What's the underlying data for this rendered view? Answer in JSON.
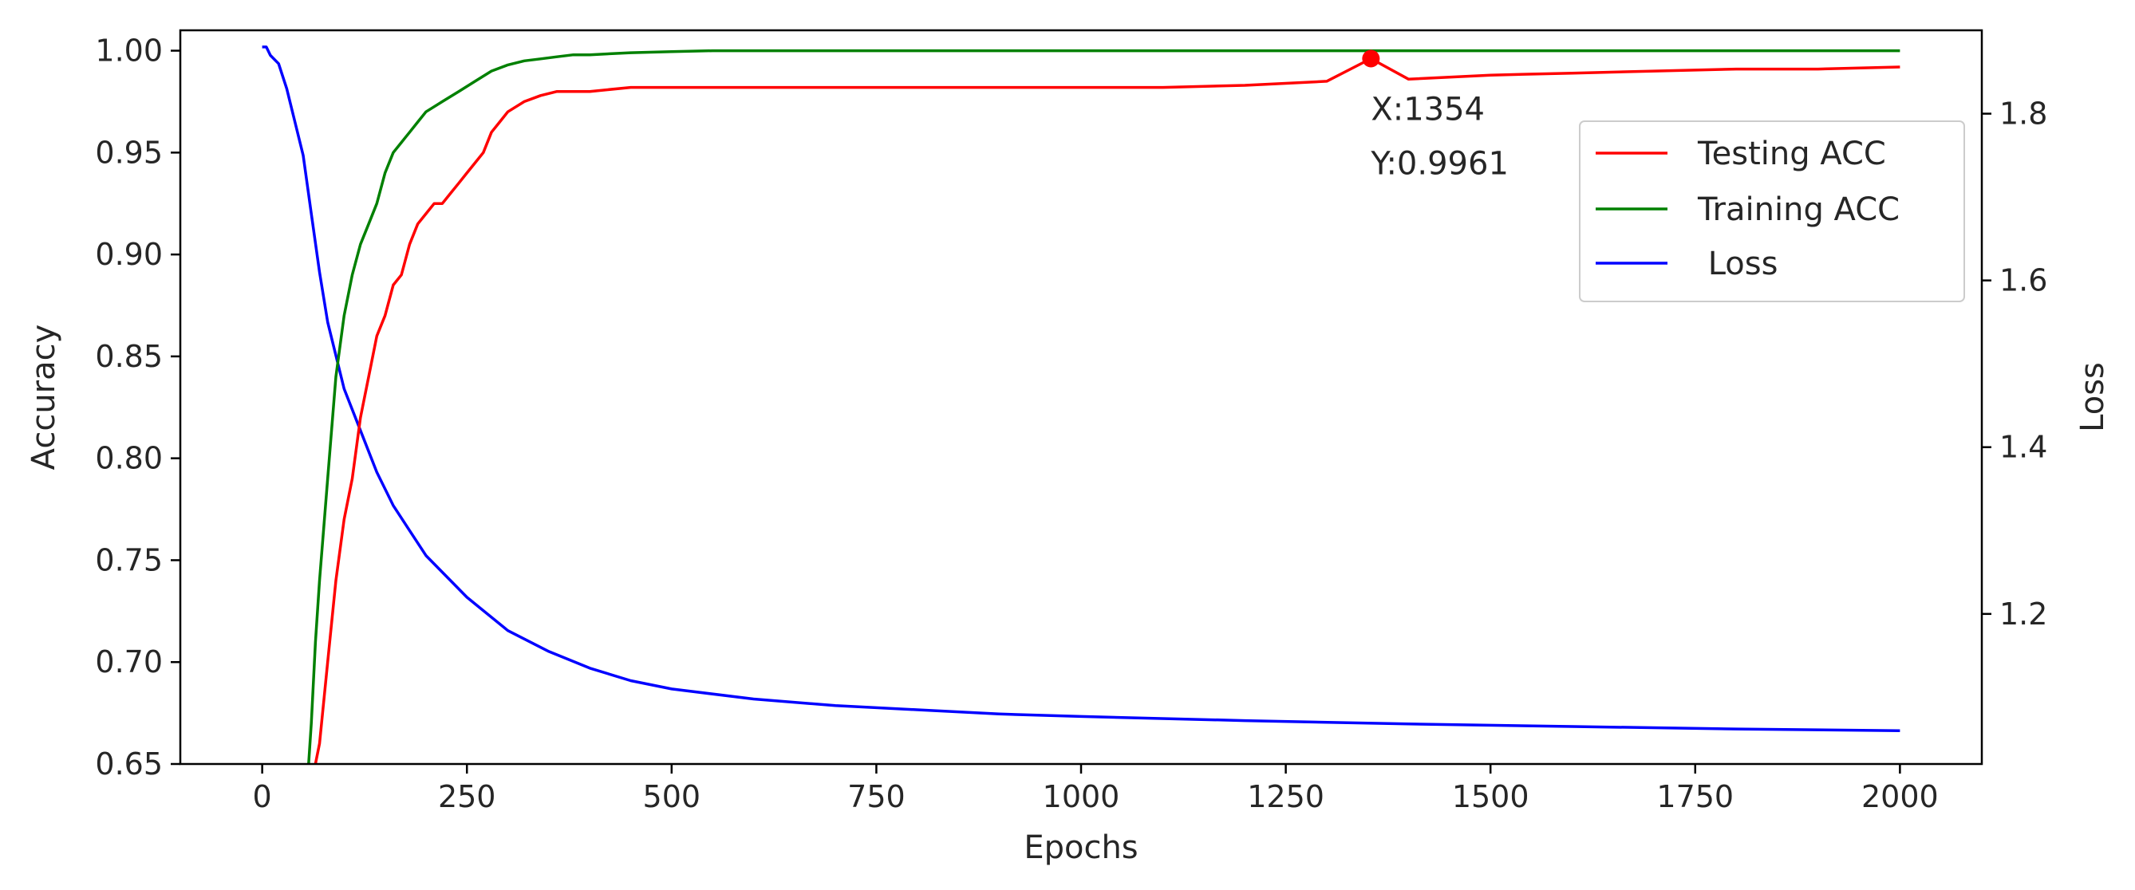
{
  "chart_data": {
    "type": "line",
    "xlabel": "Epochs",
    "ylabel": "Accuracy",
    "y2label": "Loss",
    "xlim": [
      -100,
      2100
    ],
    "ylim": [
      0.65,
      1.01
    ],
    "y2lim": [
      1.02,
      1.9
    ],
    "xticks": [
      0,
      250,
      500,
      750,
      1000,
      1250,
      1500,
      1750,
      2000
    ],
    "xtick_labels": [
      "0",
      "250",
      "500",
      "750",
      "1000",
      "1250",
      "1500",
      "1750",
      "2000"
    ],
    "yticks": [
      0.65,
      0.7,
      0.75,
      0.8,
      0.85,
      0.9,
      0.95,
      1.0
    ],
    "ytick_labels": [
      "0.65",
      "0.70",
      "0.75",
      "0.80",
      "0.85",
      "0.90",
      "0.95",
      "1.00"
    ],
    "y2ticks": [
      1.2,
      1.4,
      1.6,
      1.8
    ],
    "y2tick_labels": [
      "1.2",
      "1.4",
      "1.6",
      "1.8"
    ],
    "grid": false,
    "legend_position": "top-right",
    "series": [
      {
        "name": "Testing ACC",
        "axis": "left",
        "color": "#ff0000",
        "x": [
          60,
          70,
          80,
          90,
          100,
          110,
          120,
          130,
          140,
          150,
          160,
          170,
          180,
          190,
          200,
          210,
          220,
          230,
          240,
          250,
          260,
          270,
          280,
          290,
          300,
          320,
          340,
          360,
          380,
          400,
          450,
          500,
          550,
          600,
          700,
          800,
          900,
          1000,
          1100,
          1200,
          1300,
          1354,
          1400,
          1500,
          1600,
          1700,
          1800,
          1900,
          2000
        ],
        "y": [
          0.64,
          0.66,
          0.7,
          0.74,
          0.77,
          0.79,
          0.82,
          0.84,
          0.86,
          0.87,
          0.885,
          0.89,
          0.905,
          0.915,
          0.92,
          0.925,
          0.925,
          0.93,
          0.935,
          0.94,
          0.945,
          0.95,
          0.96,
          0.965,
          0.97,
          0.975,
          0.978,
          0.98,
          0.98,
          0.98,
          0.982,
          0.982,
          0.982,
          0.982,
          0.982,
          0.982,
          0.982,
          0.982,
          0.982,
          0.983,
          0.985,
          0.9961,
          0.986,
          0.988,
          0.989,
          0.99,
          0.991,
          0.991,
          0.992
        ]
      },
      {
        "name": "Training ACC",
        "axis": "left",
        "color": "#008000",
        "x": [
          55,
          60,
          65,
          70,
          80,
          90,
          100,
          110,
          120,
          130,
          140,
          150,
          160,
          170,
          180,
          190,
          200,
          220,
          240,
          260,
          280,
          300,
          320,
          340,
          360,
          380,
          400,
          450,
          500,
          550,
          600,
          700,
          800,
          1000,
          1250,
          1500,
          1750,
          2000
        ],
        "y": [
          0.64,
          0.67,
          0.71,
          0.74,
          0.79,
          0.84,
          0.87,
          0.89,
          0.905,
          0.915,
          0.925,
          0.94,
          0.95,
          0.955,
          0.96,
          0.965,
          0.97,
          0.975,
          0.98,
          0.985,
          0.99,
          0.993,
          0.995,
          0.996,
          0.997,
          0.998,
          0.998,
          0.999,
          0.9995,
          1.0,
          1.0,
          1.0,
          1.0,
          1.0,
          1.0,
          1.0,
          1.0,
          1.0
        ]
      },
      {
        "name": " Loss",
        "axis": "right",
        "color": "#0000ff",
        "x": [
          0,
          5,
          10,
          20,
          30,
          40,
          50,
          60,
          70,
          80,
          90,
          100,
          120,
          140,
          160,
          180,
          200,
          250,
          300,
          350,
          400,
          450,
          500,
          600,
          700,
          800,
          900,
          1000,
          1200,
          1400,
          1600,
          1800,
          2000
        ],
        "y": [
          1.88,
          1.88,
          1.87,
          1.86,
          1.83,
          1.79,
          1.75,
          1.68,
          1.61,
          1.55,
          1.51,
          1.47,
          1.42,
          1.37,
          1.33,
          1.3,
          1.27,
          1.22,
          1.18,
          1.155,
          1.135,
          1.12,
          1.11,
          1.098,
          1.09,
          1.085,
          1.08,
          1.077,
          1.072,
          1.068,
          1.065,
          1.062,
          1.06
        ]
      }
    ],
    "annotation": {
      "x": 1354,
      "y": 0.9961,
      "line1": "X:1354",
      "line2": "Y:0.9961",
      "series": "Testing ACC"
    }
  }
}
